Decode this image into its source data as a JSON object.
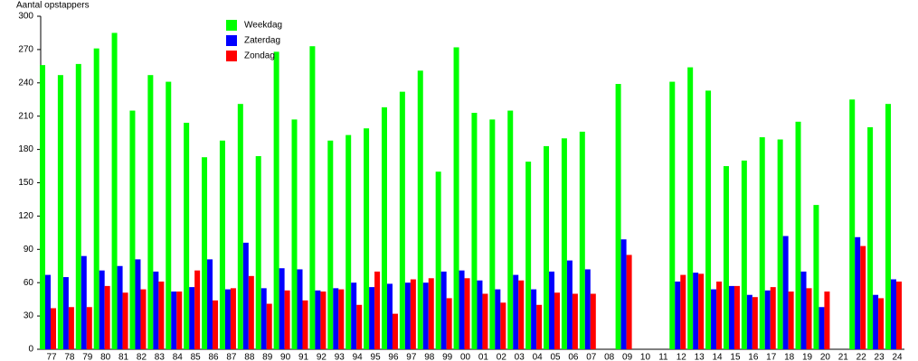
{
  "chart_data": {
    "type": "bar",
    "y_label": "Aantal opstappers",
    "categories": [
      "77",
      "78",
      "79",
      "80",
      "81",
      "82",
      "83",
      "84",
      "85",
      "86",
      "87",
      "88",
      "89",
      "90",
      "91",
      "92",
      "93",
      "94",
      "95",
      "96",
      "97",
      "98",
      "99",
      "00",
      "01",
      "02",
      "03",
      "04",
      "05",
      "06",
      "07",
      "08",
      "09",
      "10",
      "11",
      "12",
      "13",
      "14",
      "15",
      "16",
      "17",
      "18",
      "19",
      "20",
      "21",
      "22",
      "23",
      "24"
    ],
    "series": [
      {
        "name": "Weekdag",
        "color": "#00ff00",
        "values": [
          256,
          247,
          257,
          271,
          285,
          215,
          247,
          241,
          204,
          173,
          188,
          221,
          174,
          268,
          207,
          273,
          188,
          193,
          199,
          218,
          232,
          251,
          160,
          272,
          213,
          207,
          215,
          169,
          183,
          190,
          196,
          null,
          239,
          null,
          null,
          241,
          254,
          233,
          165,
          170,
          191,
          189,
          205,
          130,
          null,
          225,
          200,
          221
        ]
      },
      {
        "name": "Zaterdag",
        "color": "#0000ff",
        "values": [
          67,
          65,
          84,
          71,
          75,
          81,
          70,
          52,
          56,
          81,
          54,
          96,
          55,
          73,
          72,
          53,
          55,
          60,
          56,
          59,
          60,
          60,
          70,
          71,
          62,
          54,
          67,
          54,
          70,
          80,
          72,
          null,
          99,
          null,
          null,
          61,
          69,
          54,
          57,
          49,
          53,
          102,
          70,
          38,
          null,
          101,
          49,
          63
        ]
      },
      {
        "name": "Zondag",
        "color": "#ff0000",
        "values": [
          37,
          38,
          38,
          57,
          51,
          54,
          61,
          52,
          71,
          44,
          55,
          66,
          41,
          53,
          44,
          52,
          54,
          40,
          70,
          32,
          63,
          64,
          46,
          64,
          50,
          42,
          62,
          40,
          51,
          50,
          50,
          null,
          85,
          null,
          null,
          67,
          68,
          61,
          57,
          47,
          56,
          52,
          55,
          52,
          null,
          93,
          46,
          61
        ]
      }
    ],
    "ylim": [
      0,
      300
    ],
    "yticks": [
      0,
      30,
      60,
      90,
      120,
      150,
      180,
      210,
      240,
      270,
      300
    ],
    "grid": false
  }
}
